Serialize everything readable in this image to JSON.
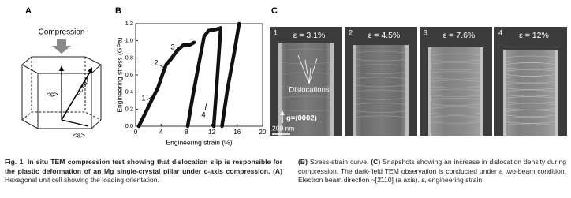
{
  "panel_a": {
    "label": "A",
    "compression": "Compression",
    "c": "<c>",
    "c_plus_a": "<c+a>",
    "a": "<a>"
  },
  "chart_data": {
    "type": "line",
    "label": "B",
    "xlabel": "Engineering strain (%)",
    "ylabel": "Engineering stress (GPa)",
    "xlim": [
      0,
      20
    ],
    "xticks": [
      0,
      4,
      8,
      12,
      16,
      20
    ],
    "ylim": [
      0,
      1.2
    ],
    "yticks": [
      {
        "value": 0,
        "label": "0.0"
      },
      0.2,
      0.4,
      0.6,
      0.8,
      {
        "value": 1,
        "label": "1.0"
      },
      1.2
    ],
    "x": [
      0.5,
      1.5,
      2.5,
      3.5,
      4.2,
      4.8,
      5.5,
      6.5,
      7.5,
      8.5,
      9.2,
      null,
      8.2,
      9,
      10,
      10.8,
      11.5,
      12.5,
      13.4,
      null,
      13.4,
      12.8,
      12.3,
      null,
      13.6,
      14.5,
      15.5,
      16.3
    ],
    "series": [
      {
        "color": "#111111",
        "values": [
          0,
          0.15,
          0.3,
          0.45,
          0.6,
          0.72,
          0.78,
          0.88,
          0.95,
          0.95,
          0.98,
          null,
          0,
          0.35,
          0.75,
          1.05,
          1.12,
          1.13,
          1.15,
          null,
          1.15,
          0.5,
          0,
          null,
          0,
          0.45,
          0.85,
          1.2
        ]
      }
    ],
    "markers": [
      "1",
      "2",
      "3",
      "4"
    ]
  },
  "panel_c": {
    "label": "C",
    "snapshots": [
      {
        "index": "1",
        "strain": "ε = 3.1%"
      },
      {
        "index": "2",
        "strain": "ε = 4.5%"
      },
      {
        "index": "3",
        "strain": "ε = 7.6%"
      },
      {
        "index": "4",
        "strain": "ε = 12%"
      }
    ],
    "dislocations": "Dislocations",
    "g_vector": "g=(0002)",
    "scale_bar": "200 nm"
  },
  "caption": {
    "left_bold": "Fig. 1. In situ TEM compression test showing that dislocation slip is responsible for the plastic deformation of an Mg single-crystal pillar under c-axis compression.",
    "a_ref": "(A)",
    "a_text": "Hexagonal unit cell showing the loading orientation.",
    "b_ref": "(B)",
    "b_text": "Stress-strain curve.",
    "c_ref": "(C)",
    "c_text": "Snapshots showing an increase in dislocation density during compression. The dark-field TEM observation is conducted under a two-beam condition. Electron beam direction ~[2̄110] (a axis). ε, engineering strain."
  }
}
